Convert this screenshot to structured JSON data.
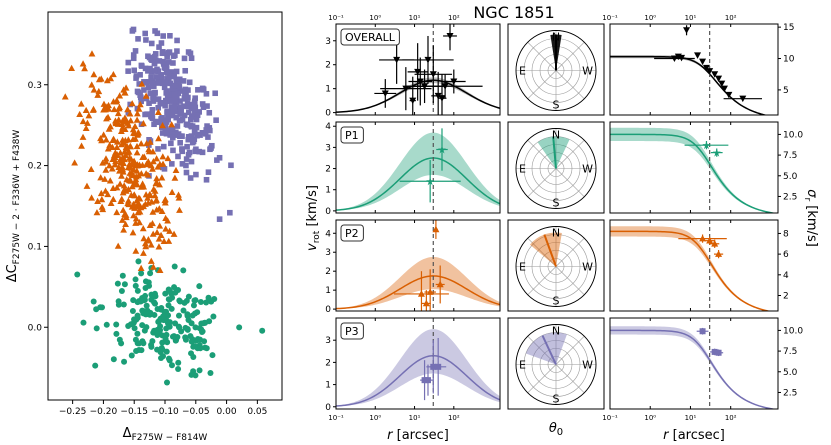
{
  "title": "NGC 1851",
  "colors": {
    "P1": "#1b9e77",
    "P2": "#d95f02",
    "P3": "#7570b3",
    "OVERALL": "#000000"
  },
  "chart_data": [
    {
      "type": "scatter",
      "name": "chromosome-map",
      "xlabel": "Δ_F275W − F814W",
      "ylabel": "ΔC_F275W − 2·F336W + F438W",
      "xlim": [
        -0.29,
        0.09
      ],
      "ylim": [
        -0.09,
        0.39
      ],
      "xticks": [
        "−0.25",
        "−0.20",
        "−0.15",
        "−0.10",
        "−0.05",
        "0.00",
        "0.05"
      ],
      "xtick_values": [
        -0.25,
        -0.2,
        -0.15,
        -0.1,
        -0.05,
        0.0,
        0.05
      ],
      "yticks": [
        "0.0",
        "0.1",
        "0.2",
        "0.3"
      ],
      "ytick_values": [
        0.0,
        0.1,
        0.2,
        0.3
      ],
      "series": [
        {
          "name": "P1",
          "marker": "circle",
          "n": 220,
          "center": [
            -0.1,
            0.005
          ],
          "spread": [
            0.05,
            0.03
          ],
          "slope": -0.35,
          "xrange": [
            -0.28,
            0.07
          ],
          "yrange": [
            -0.07,
            0.09
          ]
        },
        {
          "name": "P2",
          "marker": "triangle",
          "n": 330,
          "center": [
            -0.16,
            0.2
          ],
          "spread": [
            0.035,
            0.05
          ],
          "slope": -1.2,
          "xrange": [
            -0.28,
            -0.05
          ],
          "yrange": [
            0.07,
            0.34
          ]
        },
        {
          "name": "P3",
          "marker": "square",
          "n": 330,
          "center": [
            -0.09,
            0.28
          ],
          "spread": [
            0.035,
            0.035
          ],
          "slope": -1.2,
          "xrange": [
            -0.16,
            0.04
          ],
          "yrange": [
            0.1,
            0.37
          ]
        }
      ]
    },
    {
      "type": "line",
      "name": "rotation-profiles",
      "xscale": "log",
      "xlim": [
        0.1,
        1500
      ],
      "xlabel": "r [arcsec]",
      "ylabel": "v_rot [km/s]",
      "top_xticks": [
        "10⁻¹",
        "10⁰",
        "10¹",
        "10²"
      ],
      "xticks": [
        "10⁻¹",
        "10⁰",
        "10¹",
        "10²"
      ],
      "xtick_values": [
        0.1,
        1,
        10,
        100
      ],
      "vline_r": 30,
      "panels": [
        {
          "label": "OVERALL",
          "ylim": [
            -0.1,
            3.7
          ],
          "yticks": [
            0,
            1,
            2,
            3
          ],
          "model": {
            "amp": 1.35,
            "peak_r": 30,
            "width": 0.85,
            "band": [
              0.12,
              0.12
            ]
          },
          "points": [
            [
              1.8,
              0.8,
              1.9,
              0.6
            ],
            [
              3.5,
              2.2,
              2.8,
              1.0
            ],
            [
              6,
              1.0,
              4.5,
              0.9
            ],
            [
              9,
              0.5,
              1.2,
              1.0
            ],
            [
              12,
              1.7,
              1.8,
              1.2
            ],
            [
              14,
              1.3,
              2.0,
              1.0
            ],
            [
              18,
              1.1,
              3.0,
              0.7
            ],
            [
              22,
              2.2,
              4.5,
              1.0
            ],
            [
              30,
              1.6,
              3.0,
              1.2
            ],
            [
              40,
              0.7,
              1.5,
              1.0
            ],
            [
              50,
              0.6,
              1.3,
              1.0
            ],
            [
              60,
              1.1,
              9.0,
              0.5
            ],
            [
              100,
              1.3,
              2.0,
              0.5
            ],
            [
              80,
              3.2,
              1.5,
              0.6
            ]
          ]
        },
        {
          "label": "P1",
          "ylim": [
            -0.1,
            4.2
          ],
          "yticks": [
            0,
            1,
            2,
            3,
            4
          ],
          "model": {
            "amp": 2.5,
            "peak_r": 30,
            "width": 0.85,
            "band": [
              0.8,
              1.2
            ]
          },
          "points": [
            [
              25,
              1.4,
              6.0,
              1.0
            ],
            [
              50,
              2.9,
              1.4,
              1.0
            ]
          ]
        },
        {
          "label": "P2",
          "ylim": [
            -0.1,
            4.7
          ],
          "yticks": [
            0,
            1,
            2,
            3,
            4
          ],
          "model": {
            "amp": 1.75,
            "peak_r": 30,
            "width": 0.85,
            "band": [
              0.7,
              1.0
            ]
          },
          "points": [
            [
              15,
              0.8,
              5.0,
              1.2
            ],
            [
              20,
              0.3,
              1.3,
              0.7
            ],
            [
              25,
              0.9,
              1.4,
              1.2
            ],
            [
              35,
              4.2,
              1.1,
              0.5
            ],
            [
              45,
              1.3,
              1.3,
              1.0
            ]
          ]
        },
        {
          "label": "P3",
          "ylim": [
            -0.1,
            4.0
          ],
          "yticks": [
            0,
            1,
            2,
            3
          ],
          "model": {
            "amp": 2.3,
            "peak_r": 30,
            "width": 0.85,
            "band": [
              0.8,
              1.2
            ]
          },
          "points": [
            [
              18,
              1.2,
              1.3,
              0.9
            ],
            [
              22,
              1.2,
              1.4,
              0.7
            ],
            [
              30,
              1.8,
              1.5,
              1.2
            ],
            [
              40,
              1.8,
              1.6,
              1.3
            ]
          ]
        }
      ]
    },
    {
      "type": "line",
      "name": "dispersion-profiles",
      "xscale": "log",
      "xlim": [
        0.1,
        1500
      ],
      "xlabel": "r [arcsec]",
      "ylabel": "σ_r [km/s]",
      "top_xticks": [
        "10⁻¹",
        "10⁰",
        "10¹",
        "10²"
      ],
      "xticks": [
        "10⁻¹",
        "10⁰",
        "10¹",
        "10²"
      ],
      "xtick_values": [
        0.1,
        1,
        10,
        100
      ],
      "vline_r": 30,
      "panels": [
        {
          "ylim": [
            1.0,
            15.5
          ],
          "yticks": [
            5,
            10,
            15
          ],
          "model": {
            "s0": 10.3,
            "rc": 25,
            "pw": 0.7,
            "band": 0.25
          },
          "points": [
            [
              8,
              14.5,
              1.0,
              0.8
            ],
            [
              4,
              10.0,
              3.2,
              0.4
            ],
            [
              5,
              10.3,
              1.0,
              0.3
            ],
            [
              6,
              10.1,
              1.0,
              0.3
            ],
            [
              15,
              10.5,
              1.0,
              0.3
            ],
            [
              20,
              9.5,
              1.0,
              0.3
            ],
            [
              25,
              8.5,
              1.0,
              0.3
            ],
            [
              30,
              8.0,
              1.0,
              0.3
            ],
            [
              40,
              7.5,
              1.0,
              0.3
            ],
            [
              50,
              6.8,
              1.0,
              0.3
            ],
            [
              60,
              6.0,
              1.0,
              0.3
            ],
            [
              70,
              5.2,
              1.0,
              0.3
            ],
            [
              90,
              4.2,
              1.0,
              0.3
            ],
            [
              200,
              3.6,
              3.0,
              0.3
            ]
          ]
        },
        {
          "ylim": [
            0.5,
            11.5
          ],
          "yticks": [
            2.5,
            5.0,
            7.5,
            10.0
          ],
          "model": {
            "s0": 10.0,
            "rc": 20,
            "pw": 0.75,
            "band": 0.8
          },
          "points": [
            [
              25,
              8.7,
              3.5,
              0.5
            ],
            [
              45,
              7.8,
              1.4,
              0.5
            ]
          ]
        },
        {
          "ylim": [
            0.5,
            9.3
          ],
          "yticks": [
            2,
            4,
            6,
            8
          ],
          "model": {
            "s0": 8.2,
            "rc": 20,
            "pw": 0.75,
            "band": 0.5
          },
          "points": [
            [
              20,
              7.5,
              4.0,
              0.4
            ],
            [
              30,
              7.3,
              1.3,
              0.4
            ],
            [
              40,
              7.0,
              1.3,
              0.4
            ],
            [
              50,
              6.0,
              1.3,
              0.4
            ]
          ]
        },
        {
          "ylim": [
            0.5,
            11.5
          ],
          "yticks": [
            2.5,
            5.0,
            7.5,
            10.0
          ],
          "model": {
            "s0": 10.0,
            "rc": 20,
            "pw": 0.75,
            "band": 0.5
          },
          "points": [
            [
              20,
              9.9,
              1.4,
              0.4
            ],
            [
              40,
              7.4,
              1.3,
              0.4
            ],
            [
              50,
              7.3,
              1.3,
              0.4
            ]
          ]
        }
      ]
    },
    {
      "type": "polar",
      "name": "rotation-axis-angles",
      "xlabel": "θ₀",
      "compass": [
        "N",
        "E",
        "S",
        "W"
      ],
      "panels": [
        {
          "center_deg": 0,
          "width_deg": 18,
          "radius": 0.9
        },
        {
          "center_deg": -5,
          "width_deg": 60,
          "radius": 0.8
        },
        {
          "center_deg": -20,
          "width_deg": 60,
          "radius": 0.85
        },
        {
          "center_deg": -25,
          "width_deg": 90,
          "radius": 0.8
        }
      ]
    }
  ]
}
